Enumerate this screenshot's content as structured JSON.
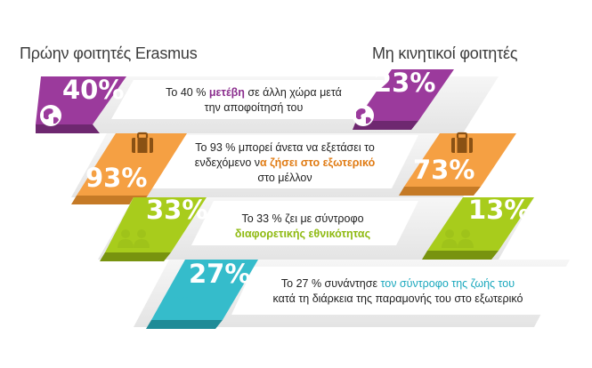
{
  "headers": {
    "left": "Πρώην φοιτητές Erasmus",
    "right": "Μη κινητικοί φοιτητές"
  },
  "colors": {
    "purple": "#9b3a9c",
    "orange": "#f5a043",
    "green": "#a8cc1c",
    "teal": "#35bccb",
    "band_light": "#f0f0f0",
    "band_dark": "#d8d8d8"
  },
  "rows": [
    {
      "erasmus_pct": "40%",
      "non_mobile_pct": "23%",
      "icon": "globe-icon",
      "text_pre": "Το 40 % ",
      "text_highlight": "μετέβη",
      "text_mid": " σε άλλη χώρα μετά",
      "text_line2": "την αποφοίτησή του"
    },
    {
      "erasmus_pct": "93%",
      "non_mobile_pct": "73%",
      "icon": "suitcase-icon",
      "text_pre": "Το 93 % μπορεί άνετα να εξετάσει το",
      "text_line2_pre": "ενδεχόμενο ν",
      "text_highlight": "α ζήσει στο εξωτερικό",
      "text_line3": "στο μέλλον"
    },
    {
      "erasmus_pct": "33%",
      "non_mobile_pct": "13%",
      "icon": "couple-icon",
      "text_pre": "Το 33 % ζει με σύντροφο",
      "text_highlight": "διαφορετικής εθνικότητας"
    },
    {
      "erasmus_pct": "27%",
      "icon": "heart-icon",
      "text_pre": "Το 27 % συνάντησε ",
      "text_highlight": "τον σύντροφο της ζωής του",
      "text_line2": "κατά τη διάρκεια της παραμονής του στο εξωτερικό"
    }
  ]
}
